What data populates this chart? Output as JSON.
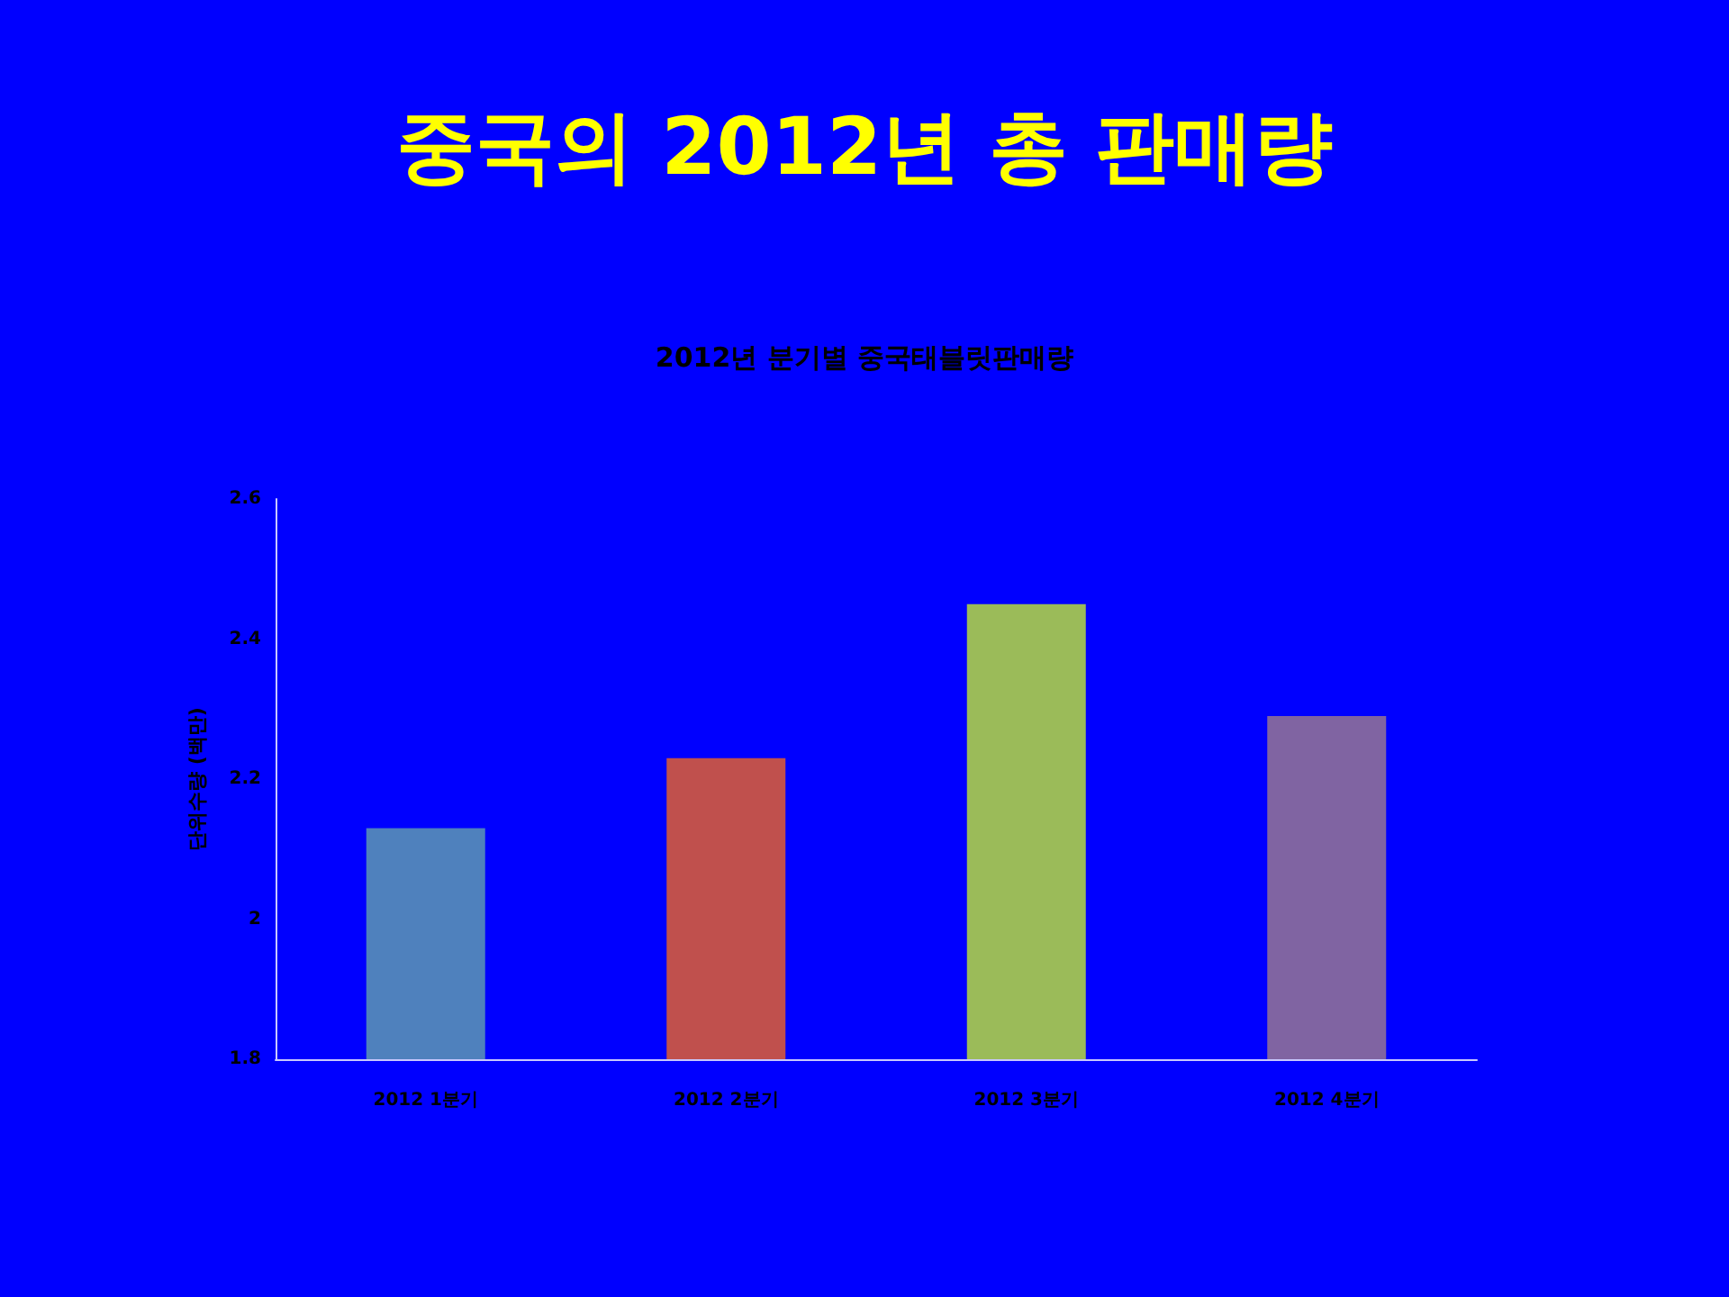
{
  "chart_data": {
    "type": "bar",
    "title": "중국의 2012년 총 판매량",
    "subtitle": "2012년 분기별 중국태블릿판매량",
    "ylabel": "단위수량 (백만)",
    "categories": [
      "2012 1분기",
      "2012 2분기",
      "2012 3분기",
      "2012 4분기"
    ],
    "values": [
      2.13,
      2.23,
      2.45,
      2.29
    ],
    "colors": [
      "#4f81bd",
      "#c0504d",
      "#9bbb59",
      "#8064a2"
    ],
    "ylim": [
      1.8,
      2.6
    ],
    "yticks": [
      1.8,
      2,
      2.2,
      2.4,
      2.6
    ],
    "grid": false
  }
}
